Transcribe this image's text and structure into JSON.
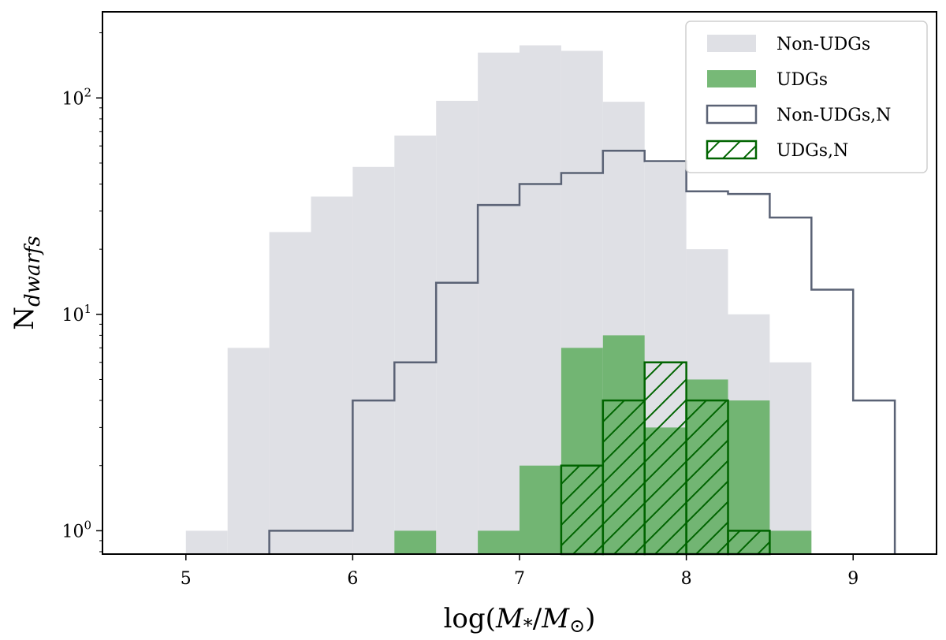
{
  "chart_data": {
    "type": "histogram",
    "title": "",
    "xlabel": "log(M*/M⊙)",
    "ylabel": "Ndwarfs",
    "yscale": "log",
    "grid": false,
    "legend_placement": "top-right",
    "xlim": [
      4.5,
      9.5
    ],
    "ylim": [
      0.78,
      250
    ],
    "bin_edges": [
      5.0,
      5.25,
      5.5,
      5.75,
      6.0,
      6.25,
      6.5,
      6.75,
      7.0,
      7.25,
      7.5,
      7.75,
      8.0,
      8.25,
      8.5,
      8.75,
      9.0,
      9.25
    ],
    "x_ticks": [
      5,
      6,
      7,
      8,
      9
    ],
    "x_tick_labels": [
      "5",
      "6",
      "7",
      "8",
      "9"
    ],
    "y_ticks": [
      1,
      10,
      100
    ],
    "y_tick_labels": [
      {
        "base": "10",
        "exp": "0"
      },
      {
        "base": "10",
        "exp": "1"
      },
      {
        "base": "10",
        "exp": "2"
      }
    ],
    "series": [
      {
        "name": "Non-UDGs",
        "style": "filled",
        "color": "#dfe0e5",
        "values": [
          1,
          7,
          24,
          35,
          48,
          67,
          97,
          162,
          175,
          165,
          96,
          50,
          20,
          10,
          6,
          0,
          0
        ]
      },
      {
        "name": "UDGs",
        "style": "filled",
        "color": "#5fad5f",
        "values": [
          0,
          0,
          0,
          0,
          0,
          1,
          0,
          1,
          2,
          7,
          8,
          3,
          5,
          4,
          1,
          0,
          0
        ]
      },
      {
        "name": "Non-UDGs,N",
        "style": "step",
        "color": "#5a6275",
        "values": [
          0,
          0,
          1,
          1,
          4,
          6,
          14,
          32,
          40,
          45,
          57,
          51,
          37,
          36,
          28,
          13,
          4
        ]
      },
      {
        "name": "UDGs,N",
        "style": "hatched",
        "color": "#006400",
        "values": [
          0,
          0,
          0,
          0,
          0,
          0,
          0,
          0,
          0,
          2,
          4,
          6,
          4,
          1,
          0,
          0,
          0
        ]
      }
    ]
  }
}
